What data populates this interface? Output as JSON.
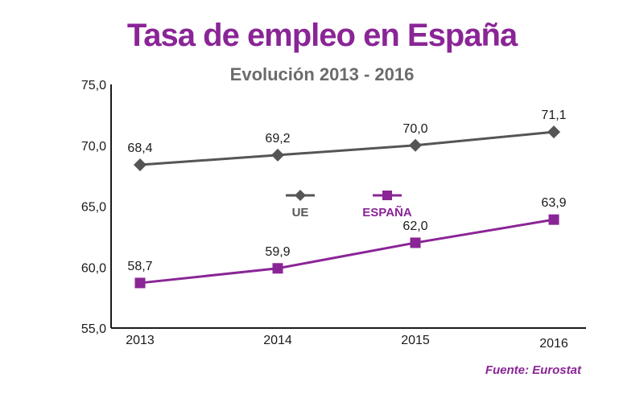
{
  "chart_data": {
    "type": "line",
    "title": "Tasa de empleo en España",
    "subtitle": "Evolución 2013 - 2016",
    "xlabel": "",
    "ylabel": "",
    "categories": [
      "2013",
      "2014",
      "2015",
      "2016"
    ],
    "ylim": [
      55.0,
      75.0
    ],
    "yticks": [
      "55,0",
      "60,0",
      "65,0",
      "70,0",
      "75,0"
    ],
    "grid": false,
    "legend_position": "center",
    "series": [
      {
        "name": "UE",
        "values": [
          68.4,
          69.2,
          70.0,
          71.1
        ],
        "labels": [
          "68,4",
          "69,2",
          "70,0",
          "71,1"
        ],
        "color": "#555555",
        "marker": "diamond"
      },
      {
        "name": "ESPAÑA",
        "values": [
          58.7,
          59.9,
          62.0,
          63.9
        ],
        "labels": [
          "58,7",
          "59,9",
          "62,0",
          "63,9"
        ],
        "color": "#8a2596",
        "marker": "square"
      }
    ],
    "source": "Fuente: Eurostat"
  }
}
